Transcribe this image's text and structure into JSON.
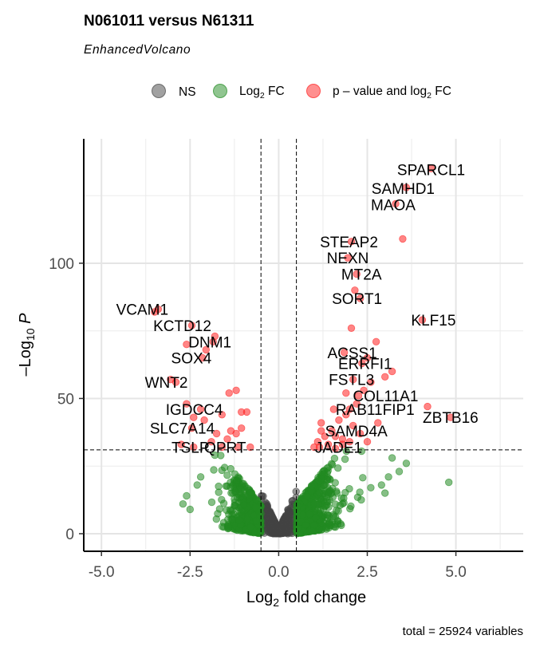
{
  "chart_data": {
    "type": "scatter",
    "title": "N061011 versus N61311",
    "subtitle": "EnhancedVolcano",
    "xlabel": "Log2 fold change",
    "ylabel": "-Log10 P",
    "xlim": [
      -5.5,
      6.9
    ],
    "ylim": [
      -6.5,
      146
    ],
    "x_ticks": [
      "-5.0",
      "-2.5",
      "0.0",
      "2.5",
      "5.0"
    ],
    "x_tick_values": [
      -5,
      -2.5,
      0,
      2.5,
      5
    ],
    "y_ticks": [
      "0",
      "50",
      "100"
    ],
    "y_tick_values": [
      0,
      50,
      100
    ],
    "fc_cutoff": 0.5,
    "p_cutoff_neglog10": 31,
    "legend": {
      "position": "top",
      "ns": "NS",
      "log2fc": "Log2 FC",
      "both": "p – value and log2 FC"
    },
    "colors": {
      "ns": "#444444",
      "log2fc": "#228B22",
      "both": "#ff2020"
    },
    "caption": "total = 25924 variables",
    "labeled_genes": [
      {
        "name": "SPARCL1",
        "x": 4.3,
        "y": 135
      },
      {
        "name": "SAMHD1",
        "x": 3.6,
        "y": 128
      },
      {
        "name": "MAOA",
        "x": 3.3,
        "y": 122
      },
      {
        "name": "STEAP2",
        "x": 2.05,
        "y": 108
      },
      {
        "name": "NEXN",
        "x": 1.95,
        "y": 102
      },
      {
        "name": "MT2A",
        "x": 2.2,
        "y": 96
      },
      {
        "name": "SORT1",
        "x": 2.3,
        "y": 87
      },
      {
        "name": "KLF15",
        "x": 4.05,
        "y": 79
      },
      {
        "name": "ACSS1",
        "x": 1.85,
        "y": 67
      },
      {
        "name": "ERRFI1",
        "x": 2.35,
        "y": 63
      },
      {
        "name": "FSTL3",
        "x": 2.1,
        "y": 57
      },
      {
        "name": "COL11A1",
        "x": 2.25,
        "y": 51
      },
      {
        "name": "RAB11FIP1",
        "x": 1.55,
        "y": 46
      },
      {
        "name": "SAMD4A",
        "x": 1.2,
        "y": 38
      },
      {
        "name": "JADE1",
        "x": 1.15,
        "y": 32
      },
      {
        "name": "ZBTB16",
        "x": 4.85,
        "y": 43
      },
      {
        "name": "VCAM1",
        "x": -3.4,
        "y": 83
      },
      {
        "name": "KCTD12",
        "x": -2.45,
        "y": 77
      },
      {
        "name": "DNM1",
        "x": -1.85,
        "y": 71
      },
      {
        "name": "SOX4",
        "x": -2.15,
        "y": 65
      },
      {
        "name": "WNT2",
        "x": -2.9,
        "y": 56
      },
      {
        "name": "IGDCC4",
        "x": -2.2,
        "y": 46
      },
      {
        "name": "SLC7A14",
        "x": -2.45,
        "y": 39
      },
      {
        "name": "TSLP",
        "x": -2.4,
        "y": 32
      },
      {
        "name": "QPRT",
        "x": -1.15,
        "y": 32
      }
    ]
  }
}
